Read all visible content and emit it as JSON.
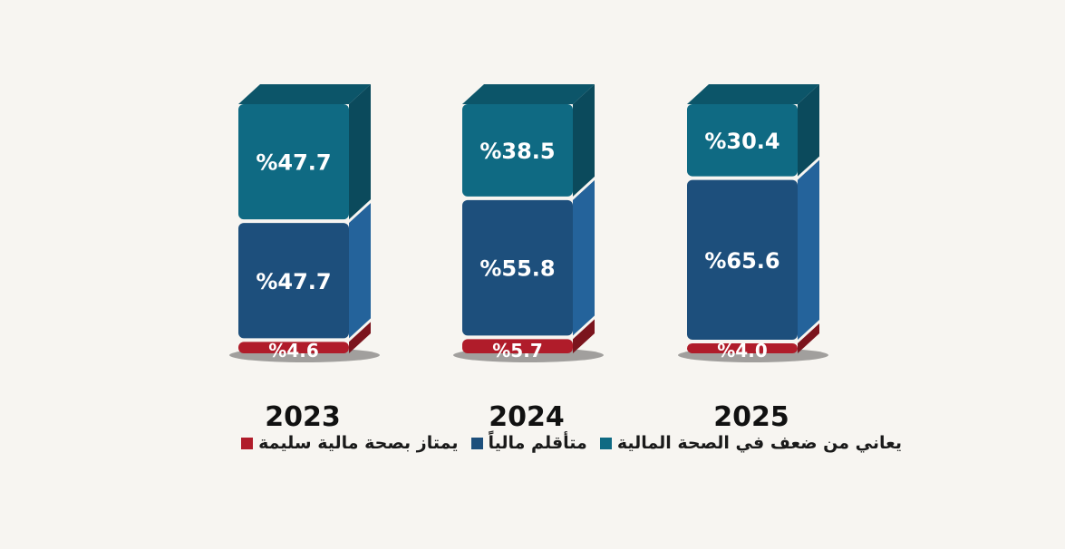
{
  "chart_data": {
    "type": "bar",
    "stacked": true,
    "style": "3d",
    "categories": [
      "2023",
      "2024",
      "2025"
    ],
    "series": [
      {
        "name": "يمتاز بصحة مالية سليمة",
        "color": "#b01c2a",
        "values": [
          4.6,
          5.7,
          4.0
        ],
        "labels": [
          "%4.6",
          "%5.7",
          "%4.0"
        ]
      },
      {
        "name": "متأقلم مالياً",
        "color": "#1d4f7c",
        "values": [
          47.7,
          55.8,
          65.6
        ],
        "labels": [
          "%47.7",
          "%55.8",
          "%65.6"
        ]
      },
      {
        "name": "يعاني من ضعف في الصحة المالية",
        "color": "#0f6a83",
        "values": [
          47.7,
          38.5,
          30.4
        ],
        "labels": [
          "%47.7",
          "%38.5",
          "%30.4"
        ]
      }
    ],
    "title": "",
    "xlabel": "",
    "ylabel": "",
    "ylim": [
      0,
      100
    ],
    "grid": false,
    "legend_placement": "bottom"
  }
}
